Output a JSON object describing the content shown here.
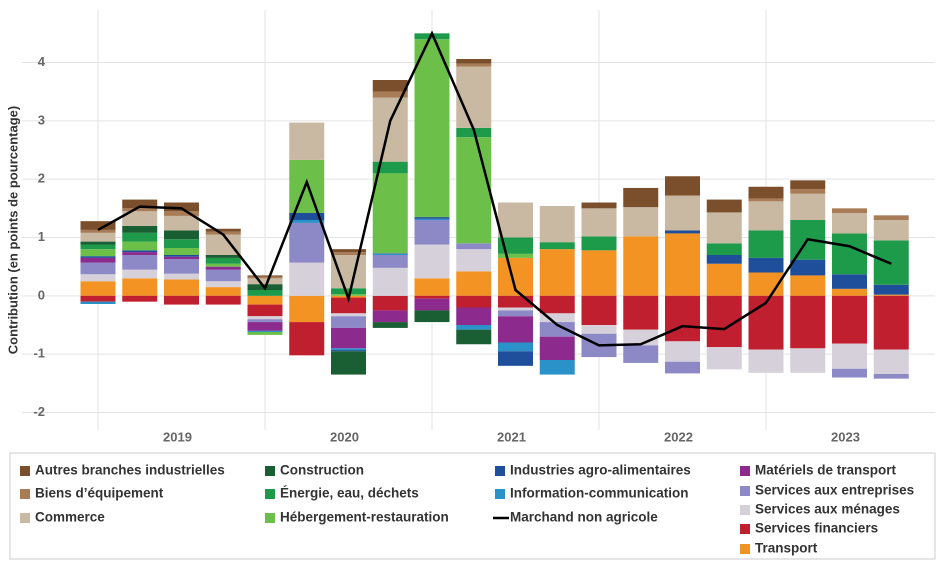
{
  "chart_data": {
    "type": "bar",
    "stacked": true,
    "y_label": "Contribution (en points de pourcentage)",
    "categories": [
      "2019",
      null,
      null,
      null,
      "2020",
      null,
      null,
      null,
      "2021",
      null,
      null,
      null,
      "2022",
      null,
      null,
      null,
      "2023",
      null,
      null,
      null
    ],
    "ylim": [
      -2.3,
      4.9
    ],
    "yticks": [
      -2,
      -1,
      0,
      1,
      2,
      3,
      4
    ],
    "grid": true,
    "series": [
      {
        "name": "Transport",
        "color": "#f39324",
        "values": [
          0.25,
          0.3,
          0.28,
          0.15,
          -0.15,
          -0.45,
          -0.03,
          0,
          0.3,
          0.42,
          0.65,
          0.8,
          0.78,
          1.02,
          1.07,
          0.55,
          0.4,
          0.35,
          0.12,
          0.02
        ]
      },
      {
        "name": "Services financiers",
        "color": "#c01f2f",
        "values": [
          -0.1,
          -0.1,
          -0.15,
          -0.15,
          -0.2,
          -0.57,
          -0.27,
          -0.25,
          -0.05,
          -0.2,
          -0.2,
          -0.3,
          -0.5,
          -0.58,
          -0.78,
          -0.88,
          -0.92,
          -0.9,
          -0.82,
          -0.92
        ]
      },
      {
        "name": "Services aux ménages",
        "color": "#d5d0d9",
        "values": [
          0.12,
          0.15,
          0.1,
          0.1,
          -0.05,
          0.57,
          -0.05,
          0.48,
          0.58,
          0.38,
          -0.05,
          -0.15,
          -0.15,
          -0.27,
          -0.35,
          -0.38,
          -0.4,
          -0.42,
          -0.43,
          -0.42
        ]
      },
      {
        "name": "Services aux entreprises",
        "color": "#8d88c6",
        "values": [
          0.2,
          0.25,
          0.25,
          0.2,
          -0.05,
          0.68,
          -0.2,
          0.22,
          0.42,
          0.1,
          -0.1,
          -0.25,
          -0.4,
          -0.3,
          -0.2,
          0,
          0,
          0,
          -0.15,
          -0.08
        ]
      },
      {
        "name": "Matériels de transport",
        "color": "#8c2a8e",
        "values": [
          0.08,
          0.05,
          0.04,
          0.05,
          -0.15,
          0,
          -0.35,
          -0.2,
          -0.2,
          -0.3,
          -0.45,
          -0.4,
          0,
          0,
          0,
          0,
          0,
          0,
          0,
          0
        ]
      },
      {
        "name": "Information-communication",
        "color": "#2a92c9",
        "values": [
          -0.04,
          0,
          0,
          0,
          -0.02,
          0.05,
          -0.03,
          0.02,
          0.02,
          -0.08,
          -0.15,
          -0.25,
          0,
          0,
          0,
          0,
          0,
          0,
          0,
          0
        ]
      },
      {
        "name": "Industries agro-alimentaires",
        "color": "#1f4f9b",
        "values": [
          0.03,
          0.03,
          0.03,
          0,
          0,
          0.12,
          -0.02,
          0.01,
          0.03,
          0,
          -0.25,
          0,
          0,
          0,
          0.05,
          0.15,
          0.25,
          0.27,
          0.25,
          0.17
        ]
      },
      {
        "name": "Hébergement-restauration",
        "color": "#6cc04a",
        "values": [
          0.12,
          0.15,
          0.12,
          0.05,
          -0.05,
          0.91,
          0.03,
          1.37,
          3.05,
          1.82,
          0.07,
          0,
          0,
          0,
          0,
          0,
          0,
          0,
          0,
          0
        ]
      },
      {
        "name": "Énergie, eau, déchets",
        "color": "#1e9a4b",
        "values": [
          0.08,
          0.15,
          0.15,
          0.1,
          0.1,
          0,
          0.1,
          0.2,
          0.1,
          0.16,
          0.28,
          0.12,
          0.24,
          0,
          0,
          0.2,
          0.47,
          0.68,
          0.7,
          0.76
        ]
      },
      {
        "name": "Construction",
        "color": "#1a5e34",
        "values": [
          0.05,
          0.12,
          0.15,
          0.05,
          0.1,
          0,
          -0.4,
          -0.1,
          -0.2,
          -0.25,
          0,
          0,
          0,
          0,
          0,
          0,
          0,
          0,
          0,
          0
        ]
      },
      {
        "name": "Commerce",
        "color": "#c9b9a3",
        "values": [
          0.15,
          0.25,
          0.25,
          0.35,
          0.1,
          0.64,
          0.57,
          1.1,
          0,
          1.05,
          0.6,
          0.62,
          0.48,
          0.5,
          0.6,
          0.53,
          0.5,
          0.45,
          0.35,
          0.35
        ]
      },
      {
        "name": "Biens d’équipement",
        "color": "#a87c57",
        "values": [
          0.05,
          0.05,
          0.08,
          0.05,
          0.03,
          0,
          0.05,
          0.1,
          0,
          0.05,
          0,
          0,
          0,
          0,
          0,
          0,
          0.05,
          0.08,
          0.08,
          0.08
        ]
      },
      {
        "name": "Autres branches industrielles",
        "color": "#7b4f2b",
        "values": [
          0.15,
          0.15,
          0.15,
          0.05,
          0.02,
          0,
          0.05,
          0.2,
          0,
          0.08,
          0,
          0,
          0.1,
          0.33,
          0.33,
          0.22,
          0.2,
          0.15,
          0,
          0
        ]
      },
      {
        "name": "Marchand non agricole",
        "type": "line",
        "color": "#000000",
        "values": [
          1.13,
          1.53,
          1.5,
          1.05,
          0.13,
          1.95,
          -0.05,
          3.0,
          4.5,
          2.85,
          0.1,
          -0.5,
          -0.85,
          -0.83,
          -0.52,
          -0.57,
          -0.12,
          0.97,
          0.85,
          0.55
        ]
      }
    ]
  }
}
